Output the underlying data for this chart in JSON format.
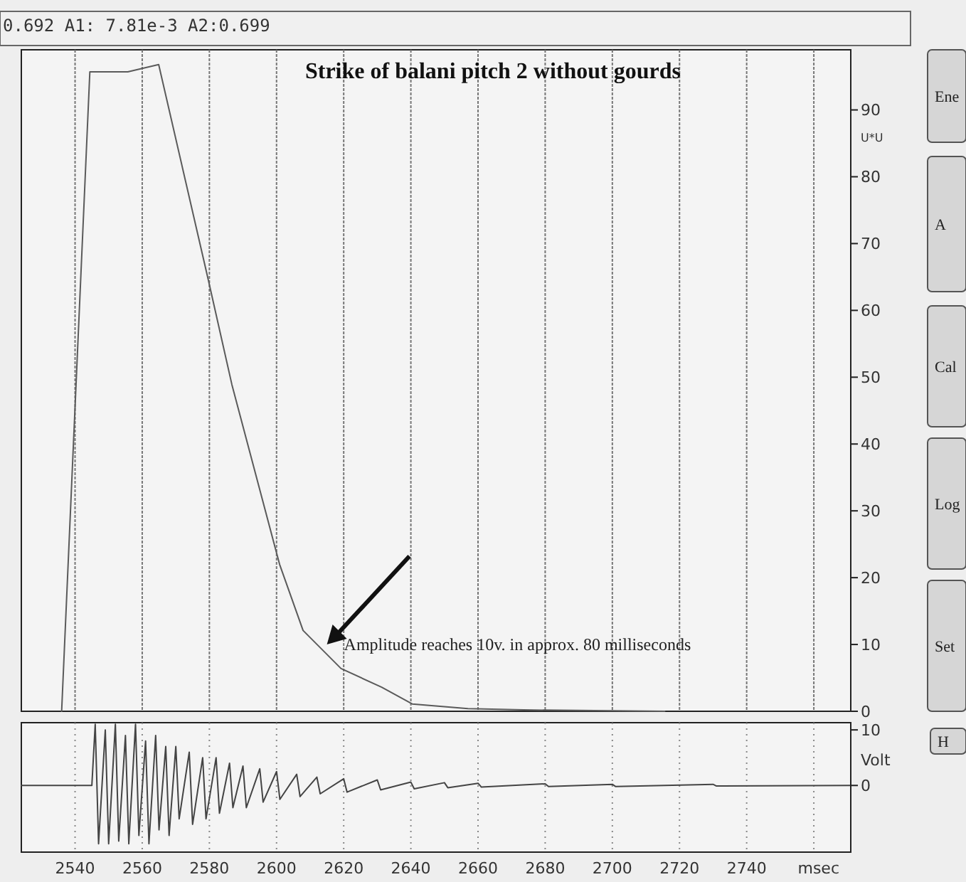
{
  "chart_data": [
    {
      "type": "line",
      "title": "Strike of balani pitch 2 without gourds",
      "ylabel": "U*U",
      "annotations": [
        "0.692 A1: 7.81e-3 A2:0.699",
        {
          "text": "Amplitude reaches 10v. in approx. 80 milliseconds",
          "x": 2615,
          "y": 10
        },
        "Ene",
        "A",
        "Cal",
        "Log",
        "Set"
      ],
      "xlim": [
        2524,
        2771
      ],
      "xticks": [
        2540,
        2560,
        2580,
        2600,
        2620,
        2640,
        2660,
        2680,
        2700,
        2720,
        2740,
        {
          "value": 2760,
          "label": null
        }
      ],
      "ylim": [
        0,
        99
      ],
      "yticks": [
        0,
        10,
        20,
        30,
        40,
        50,
        60,
        70,
        80,
        90
      ],
      "grid": "x",
      "tick_labels": "y",
      "series": [
        {
          "color": "#5a5a5a",
          "x": [
            2536,
            2544.4,
            2555.7,
            2564.9,
            2579.7,
            2586.7,
            2600.9,
            2607.9,
            2619.2,
            2631.3,
            2640.4,
            2657,
            2673.5,
            2715.6
          ],
          "values": [
            0,
            95.7,
            95.7,
            96.8,
            64.5,
            48.9,
            22,
            12.1,
            6.4,
            3.6,
            1.1,
            0.4,
            0.2,
            0
          ]
        }
      ]
    },
    {
      "type": "line",
      "xlabel": "msec",
      "ylabel": "Volt",
      "annotations": [
        "H"
      ],
      "xlim": [
        2524,
        2771
      ],
      "xticks": [
        2540,
        2560,
        2580,
        2600,
        2620,
        2640,
        2660,
        2680,
        2700,
        2720,
        2740,
        {
          "value": 2760,
          "label": null
        }
      ],
      "ylim": [
        -12,
        11.3
      ],
      "yticks": [
        0,
        10
      ],
      "grid": "x",
      "line_style": "solid",
      "series": [
        {
          "color": "#444444",
          "x": [
            2524,
            2545,
            2546,
            2547,
            2549,
            2550,
            2552,
            2553,
            2555,
            2556,
            2558,
            2559,
            2561,
            2562,
            2564,
            2565,
            2567,
            2568,
            2570,
            2571,
            2574,
            2575,
            2578,
            2579,
            2582,
            2583,
            2586,
            2587,
            2590,
            2591,
            2595,
            2596,
            2600,
            2601,
            2606,
            2607,
            2612,
            2613,
            2620,
            2621,
            2630,
            2631,
            2640,
            2641,
            2650,
            2651,
            2660,
            2661,
            2680,
            2681,
            2700,
            2701,
            2730,
            2731,
            2771
          ],
          "values": [
            0,
            0,
            11,
            -10.5,
            10,
            -10.5,
            11,
            -10,
            9,
            -10.5,
            11,
            -9,
            8,
            -10.5,
            9,
            -8,
            7,
            -9,
            7,
            -6,
            6,
            -7,
            5,
            -6,
            5,
            -5,
            4,
            -4,
            3.5,
            -4,
            3,
            -3,
            2.5,
            -2.5,
            2,
            -2,
            1.5,
            -1.5,
            1.2,
            -1.2,
            1,
            -0.8,
            0.6,
            -0.6,
            0.5,
            -0.4,
            0.4,
            -0.3,
            0.3,
            -0.2,
            0.2,
            -0.2,
            0.2,
            -0.1,
            0
          ]
        }
      ]
    }
  ]
}
